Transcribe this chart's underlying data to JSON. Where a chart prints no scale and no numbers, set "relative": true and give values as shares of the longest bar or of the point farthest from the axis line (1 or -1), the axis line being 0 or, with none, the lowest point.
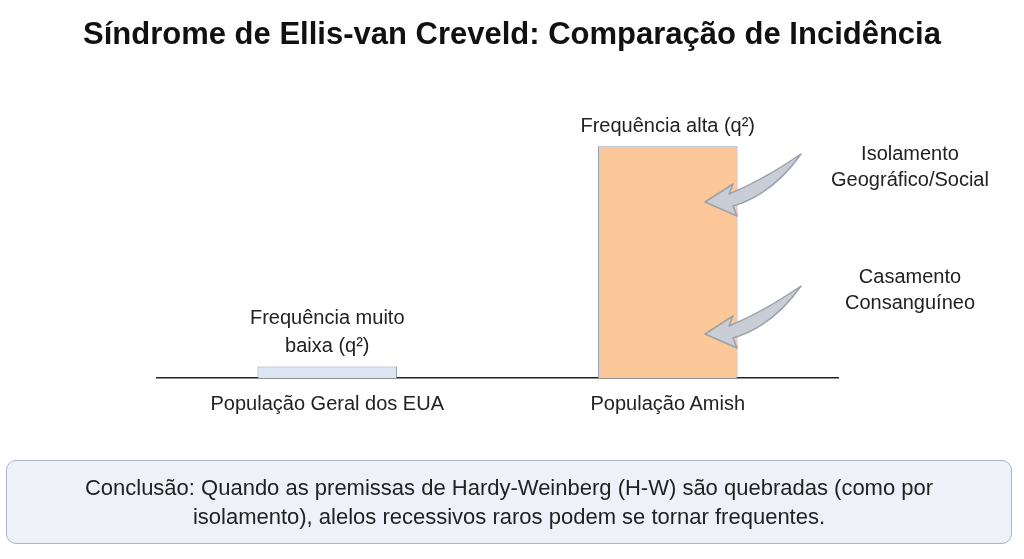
{
  "chart_data": {
    "type": "bar",
    "title": "Síndrome de Ellis-van Creveld: Comparação de Incidência",
    "categories": [
      "População Geral dos EUA",
      "População Amish"
    ],
    "relative": true,
    "values": [
      0.05,
      1
    ],
    "colors": [
      "#dce5f2",
      "#fdc899"
    ],
    "annotations": [
      {
        "text": "Frequência muito baixa (q²)",
        "x": "População Geral dos EUA",
        "y": 0.05
      },
      {
        "text": "Frequência alta (q²)",
        "x": "População Amish",
        "y": 1
      },
      "Isolamento Geográfico/Social",
      "Casamento Consanguíneo",
      "Conclusão: Quando as premissas de Hardy-Weinberg (H-W) são quebradas (como por isolamento), alelos recessivos raros podem se tornar frequentes."
    ],
    "legend": false,
    "grid": false
  }
}
